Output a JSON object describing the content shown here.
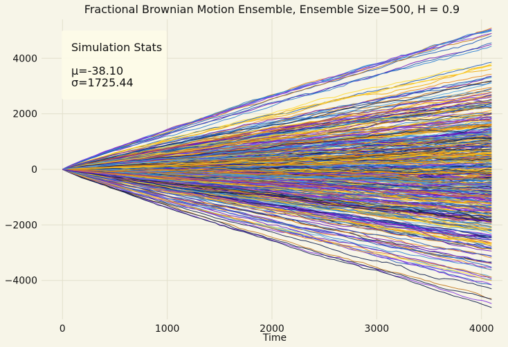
{
  "chart_data": {
    "type": "line",
    "title": "Fractional Brownian Motion Ensemble, Ensemble Size=500, H = 0.9",
    "xlabel": "Time",
    "ylabel": "",
    "xlim": [
      -200,
      4200
    ],
    "ylim": [
      -5400,
      5400
    ],
    "xticks": [
      0,
      1000,
      2000,
      3000,
      4000
    ],
    "yticks": [
      -4000,
      -2000,
      0,
      2000,
      4000
    ],
    "grid": true,
    "ensemble_size": 500,
    "hurst": 0.9,
    "n_steps": 4096,
    "series_colors": [
      "#2a7fd1",
      "#1858b8",
      "#6a12b8",
      "#ffd92e",
      "#f2a900",
      "#e8861a",
      "#0b1c4a",
      "#c07318",
      "#4aa3e0",
      "#7d2ee0"
    ],
    "representative_endpoints": [
      5000,
      4800,
      4500,
      3900,
      3600,
      2900,
      2300,
      1800,
      1200,
      700,
      300,
      -100,
      -600,
      -1100,
      -1700,
      -2200,
      -2800,
      -3400,
      -4000,
      -4800
    ],
    "stats_box": {
      "heading": "Simulation Stats",
      "mean": "μ=-38.10",
      "std": "σ=1725.44"
    }
  }
}
